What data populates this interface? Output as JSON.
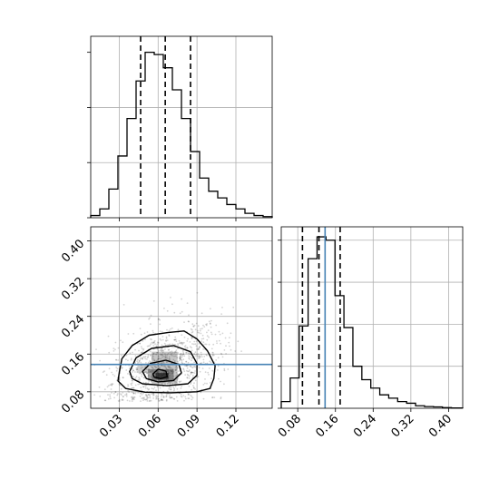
{
  "chart_data": {
    "type": "corner",
    "parameters": [
      {
        "ticks": [
          0.03,
          0.06,
          0.09,
          0.12
        ],
        "tick_labels": [
          "0.03",
          "0.06",
          "0.09",
          "0.12"
        ],
        "range": [
          0.008,
          0.148
        ]
      },
      {
        "ticks": [
          0.08,
          0.16,
          0.24,
          0.32,
          0.4
        ],
        "tick_labels": [
          "0.08",
          "0.16",
          "0.24",
          "0.32",
          "0.40"
        ],
        "range": [
          0.045,
          0.43
        ]
      }
    ],
    "histogram_1": {
      "bin_edges": [
        0.008,
        0.015,
        0.022,
        0.029,
        0.036,
        0.043,
        0.05,
        0.057,
        0.064,
        0.071,
        0.078,
        0.085,
        0.092,
        0.099,
        0.106,
        0.113,
        0.12,
        0.127,
        0.134,
        0.141,
        0.148
      ],
      "counts": [
        1,
        4,
        13,
        28,
        45,
        62,
        75,
        74,
        68,
        58,
        45,
        30,
        18,
        12,
        9,
        6,
        4,
        2,
        1,
        0.5
      ],
      "quantiles": [
        0.0465,
        0.0655,
        0.085
      ]
    },
    "histogram_2": {
      "bin_edges": [
        0.045,
        0.064,
        0.083,
        0.102,
        0.121,
        0.14,
        0.159,
        0.178,
        0.197,
        0.216,
        0.235,
        0.254,
        0.273,
        0.292,
        0.311,
        0.33,
        0.349,
        0.368,
        0.387,
        0.406,
        0.43
      ],
      "counts": [
        4,
        18,
        49,
        89,
        102,
        100,
        67,
        48,
        25,
        17,
        12,
        8,
        6,
        4,
        3,
        1.5,
        1,
        0.8,
        0.4,
        0.2
      ],
      "quantiles": [
        0.09,
        0.125,
        0.17
      ],
      "truth": 0.138
    },
    "scatter_2d": {
      "mean": [
        0.066,
        0.132
      ],
      "peak": [
        0.0625,
        0.112
      ],
      "truth_y": 0.138
    }
  }
}
